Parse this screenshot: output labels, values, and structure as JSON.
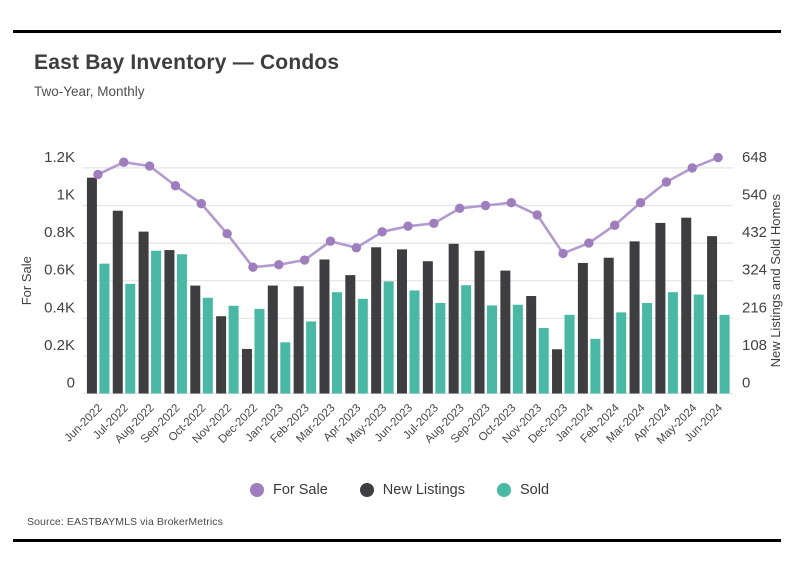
{
  "page": {
    "title": "East Bay Inventory — Condos",
    "subtitle": "Two-Year, Monthly",
    "source": "Source:  EASTBAYMLS via BrokerMetrics"
  },
  "colors": {
    "for_sale_marker": "#9f7ec0",
    "for_sale_line": "#b29ad1",
    "new_listings": "#3e3e40",
    "sold": "#47b9a4",
    "grid": "#e4e4e4",
    "tick_text": "#424242",
    "axis_title_text": "#3f3f3f",
    "rule": "#000000"
  },
  "legend": [
    {
      "label": "For Sale",
      "color": "#9f7ec0"
    },
    {
      "label": "New Listings",
      "color": "#3e3e40"
    },
    {
      "label": "Sold",
      "color": "#47b9a4"
    }
  ],
  "chart_data": {
    "type": "bar",
    "subtype": "grouped bars with overlaid line (dual y-axis)",
    "title": "East Bay Inventory — Condos",
    "subtitle": "Two-Year, Monthly",
    "grid": true,
    "legend_position": "bottom-center",
    "categories": [
      "Jun-2022",
      "Jul-2022",
      "Aug-2022",
      "Sep-2022",
      "Oct-2022",
      "Nov-2022",
      "Dec-2022",
      "Jan-2023",
      "Feb-2023",
      "Mar-2023",
      "Apr-2023",
      "May-2023",
      "Jun-2023",
      "Jul-2023",
      "Aug-2023",
      "Sep-2023",
      "Oct-2023",
      "Nov-2023",
      "Dec-2023",
      "Jan-2024",
      "Feb-2024",
      "Mar-2024",
      "Apr-2024",
      "May-2024",
      "Jun-2024"
    ],
    "series": [
      {
        "name": "For Sale",
        "type": "line",
        "axis": "left",
        "marker_color": "#9f7ec0",
        "line_color": "#b29ad1",
        "values": [
          1165,
          1230,
          1210,
          1105,
          1010,
          850,
          672,
          685,
          710,
          810,
          775,
          860,
          890,
          905,
          985,
          1000,
          1015,
          950,
          745,
          800,
          895,
          1015,
          1125,
          1200,
          1255
        ]
      },
      {
        "name": "New Listings",
        "type": "bar",
        "axis": "right",
        "color": "#3e3e40",
        "values": [
          620,
          525,
          465,
          412,
          310,
          222,
          128,
          310,
          308,
          385,
          340,
          420,
          414,
          380,
          430,
          410,
          353,
          280,
          127,
          375,
          390,
          437,
          490,
          505,
          452
        ]
      },
      {
        "name": "Sold",
        "type": "bar",
        "axis": "right",
        "color": "#47b9a4",
        "values": [
          373,
          315,
          410,
          400,
          275,
          252,
          243,
          147,
          207,
          291,
          272,
          322,
          296,
          260,
          311,
          253,
          255,
          188,
          226,
          157,
          233,
          260,
          291,
          284,
          226
        ]
      }
    ],
    "left_axis": {
      "label": "For Sale",
      "ticks": [
        "0",
        "0.2K",
        "0.4K",
        "0.6K",
        "0.8K",
        "1K",
        "1.2K"
      ],
      "tick_values": [
        0,
        200,
        400,
        600,
        800,
        1000,
        1200
      ],
      "range": [
        0,
        1320
      ]
    },
    "right_axis": {
      "label": "New Listings and Sold Homes",
      "ticks": [
        "0",
        "108",
        "216",
        "324",
        "432",
        "540",
        "648"
      ],
      "tick_values": [
        0,
        108,
        216,
        324,
        432,
        540,
        648
      ],
      "range": [
        0,
        713
      ]
    }
  }
}
